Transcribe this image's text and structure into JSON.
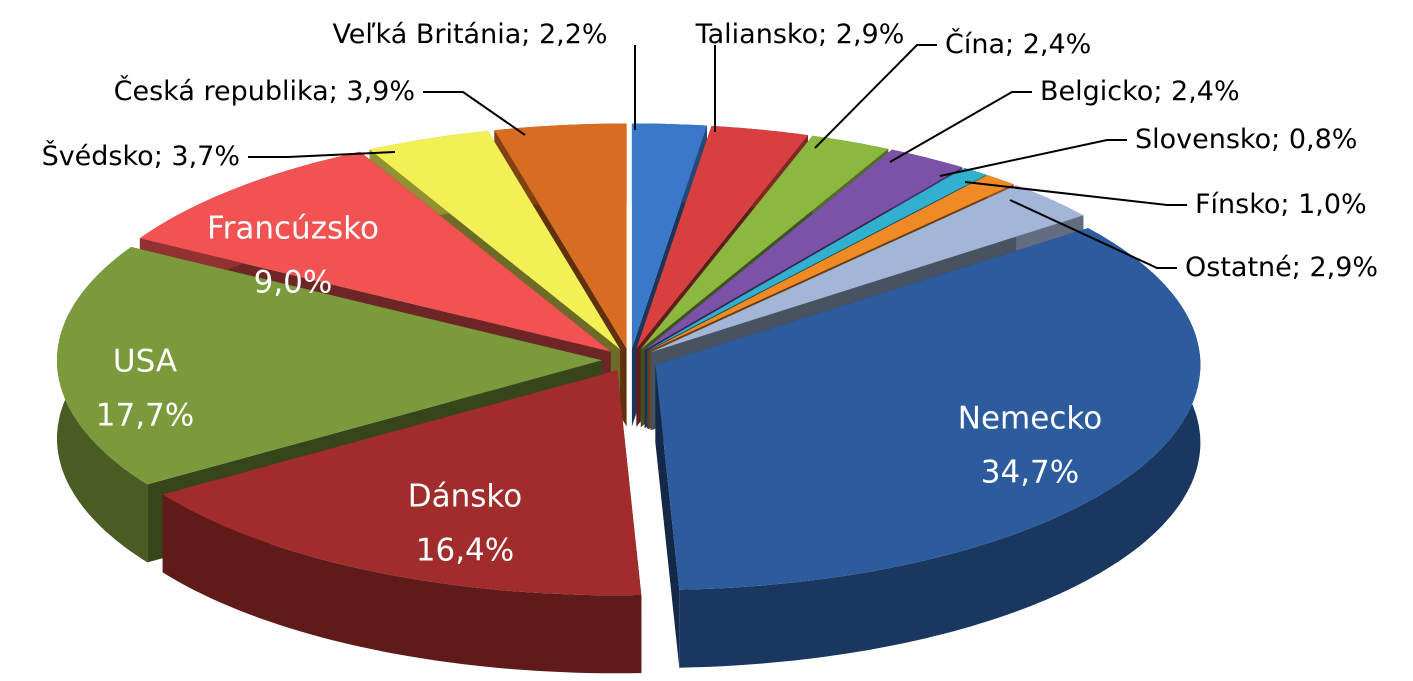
{
  "chart_data": {
    "type": "pie",
    "style": "3d-exploded",
    "categories": [
      "Veľká Británia",
      "Taliansko",
      "Čína",
      "Belgicko",
      "Slovensko",
      "Fínsko",
      "Ostatné",
      "Nemecko",
      "Dánsko",
      "USA",
      "Francúzsko",
      "Švédsko",
      "Česká republika"
    ],
    "values": [
      2.2,
      2.9,
      2.4,
      2.4,
      0.8,
      1.0,
      2.9,
      34.7,
      16.4,
      17.7,
      9.0,
      3.7,
      3.9
    ],
    "value_labels": [
      "2,2%",
      "2,9%",
      "2,4%",
      "2,4%",
      "0,8%",
      "1,0%",
      "2,9%",
      "34,7%",
      "16,4%",
      "17,7%",
      "9,0%",
      "3,7%",
      "3,9%"
    ],
    "label_separator": "; ",
    "colors": [
      "#3a78c9",
      "#d84040",
      "#8db83f",
      "#7a52a8",
      "#31b0d0",
      "#f08a24",
      "#a3b6d8",
      "#2c5c9e",
      "#a02c2c",
      "#7a9a3c",
      "#f25252",
      "#f2f055",
      "#d86c20"
    ]
  }
}
